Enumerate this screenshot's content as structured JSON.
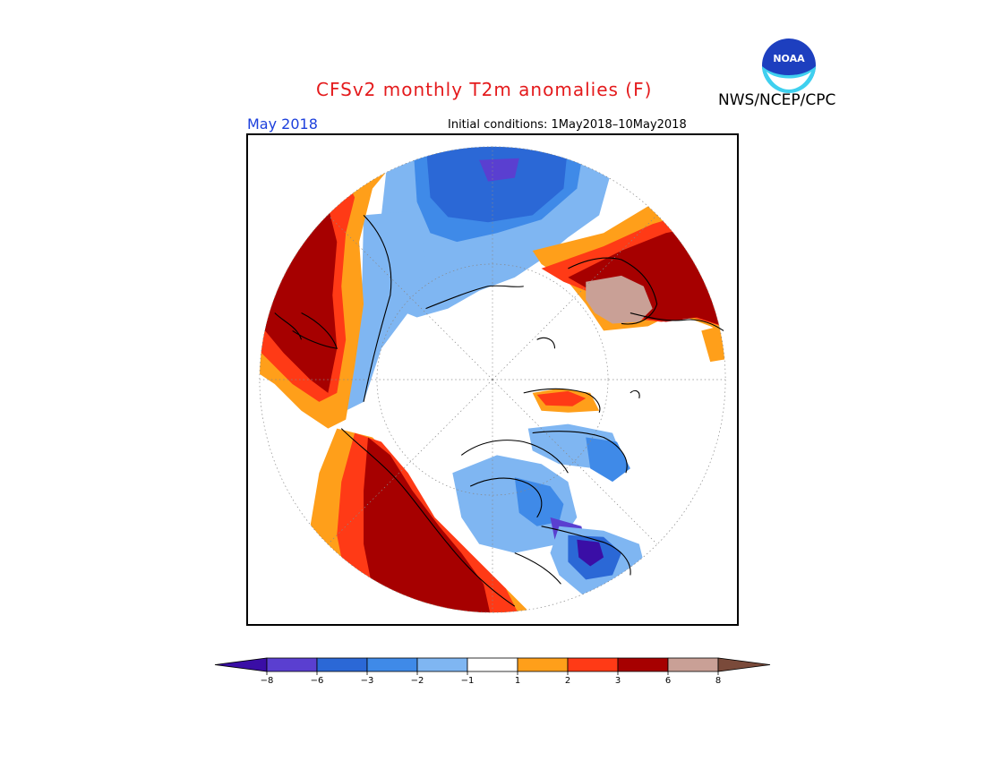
{
  "header": {
    "title": "CFSv2 monthly T2m anomalies (F)",
    "agency": "NWS/NCEP/CPC",
    "logo_text": "NOAA"
  },
  "subheader": {
    "period": "May 2018",
    "initial_conditions": "Initial conditions: 1May2018–10May2018"
  },
  "legend": {
    "unit": "F",
    "colors": [
      "#3a0ea6",
      "#5a3fd0",
      "#2b68d6",
      "#3f8ae8",
      "#7fb6f2",
      "#ffffff",
      "#ff9f1a",
      "#ff3a16",
      "#a60000",
      "#c9a096",
      "#7a4a3a"
    ],
    "ticks": [
      "−8",
      "−6",
      "−3",
      "−2",
      "−1",
      "1",
      "2",
      "3",
      "6",
      "8"
    ]
  }
}
